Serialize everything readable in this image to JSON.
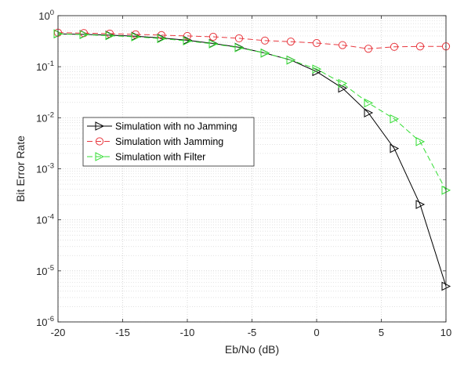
{
  "chart_data": {
    "type": "line",
    "title": "",
    "xlabel": "Eb/No (dB)",
    "ylabel": "Bit Error Rate",
    "xlim": [
      -20,
      10
    ],
    "ylim": [
      1e-06,
      1
    ],
    "yscale": "log",
    "xticks": [
      -20,
      -15,
      -10,
      -5,
      0,
      5,
      10
    ],
    "xtick_labels": [
      "-20",
      "-15",
      "-10",
      "-5",
      "0",
      "5",
      "10"
    ],
    "yticks": [
      1e-06,
      1e-05,
      0.0001,
      0.001,
      0.01,
      0.1,
      1
    ],
    "ytick_labels": [
      {
        "base": "10",
        "exp": "-6"
      },
      {
        "base": "10",
        "exp": "-5"
      },
      {
        "base": "10",
        "exp": "-4"
      },
      {
        "base": "10",
        "exp": "-3"
      },
      {
        "base": "10",
        "exp": "-2"
      },
      {
        "base": "10",
        "exp": "-1"
      },
      {
        "base": "10",
        "exp": "0"
      }
    ],
    "grid": true,
    "minor_grid": true,
    "legend_position": "middle-left",
    "series": [
      {
        "name": "Simulation with no Jamming",
        "color": "#000000",
        "line_style": "solid",
        "marker": "triangle-right",
        "x": [
          -20,
          -18,
          -16,
          -14,
          -12,
          -10,
          -8,
          -6,
          -4,
          -2,
          0,
          2,
          4,
          6,
          8,
          10
        ],
        "y": [
          0.44,
          0.43,
          0.415,
          0.395,
          0.365,
          0.33,
          0.285,
          0.24,
          0.185,
          0.135,
          0.08,
          0.038,
          0.0125,
          0.0025,
          0.0002,
          5e-06
        ]
      },
      {
        "name": "Simulation with Jamming",
        "color": "#e8383f",
        "line_style": "dashed",
        "marker": "circle",
        "x": [
          -20,
          -18,
          -16,
          -14,
          -12,
          -10,
          -8,
          -6,
          -4,
          -2,
          0,
          2,
          4,
          6,
          8,
          10
        ],
        "y": [
          0.465,
          0.455,
          0.445,
          0.43,
          0.415,
          0.4,
          0.385,
          0.36,
          0.325,
          0.31,
          0.29,
          0.265,
          0.225,
          0.245,
          0.25,
          0.25
        ]
      },
      {
        "name": "Simulation with Filter",
        "color": "#33dd33",
        "line_style": "dashed",
        "marker": "triangle-right",
        "x": [
          -20,
          -18,
          -16,
          -14,
          -12,
          -10,
          -8,
          -6,
          -4,
          -2,
          0,
          2,
          4,
          6,
          8,
          10
        ],
        "y": [
          0.44,
          0.425,
          0.405,
          0.385,
          0.355,
          0.32,
          0.28,
          0.235,
          0.185,
          0.135,
          0.09,
          0.047,
          0.0195,
          0.0095,
          0.0034,
          0.00038
        ]
      }
    ]
  }
}
